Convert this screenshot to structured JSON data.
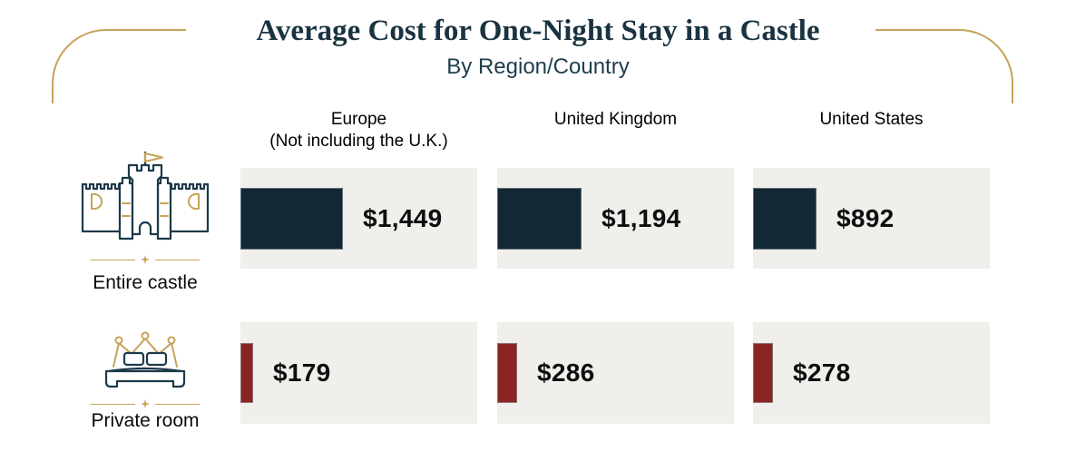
{
  "title": "Average Cost for One-Night Stay in a Castle",
  "subtitle": "By Region/Country",
  "columns": [
    {
      "label": "Europe",
      "sublabel": "(Not including the U.K.)"
    },
    {
      "label": "United Kingdom",
      "sublabel": ""
    },
    {
      "label": "United States",
      "sublabel": ""
    }
  ],
  "rows": [
    {
      "label": "Entire castle",
      "icon": "castle-icon",
      "values_display": [
        "$1,449",
        "$1,194",
        "$892"
      ]
    },
    {
      "label": "Private room",
      "icon": "bed-icon",
      "values_display": [
        "$179",
        "$286",
        "$278"
      ]
    }
  ],
  "chart_data": {
    "type": "bar",
    "orientation": "horizontal",
    "title": "Average Cost for One-Night Stay in a Castle",
    "subtitle": "By Region/Country",
    "categories": [
      "Europe (Not including the U.K.)",
      "United Kingdom",
      "United States"
    ],
    "series": [
      {
        "name": "Entire castle",
        "values": [
          1449,
          1194,
          892
        ],
        "color": "#122935"
      },
      {
        "name": "Private room",
        "values": [
          179,
          286,
          278
        ],
        "color": "#8b2522"
      }
    ],
    "value_prefix": "$",
    "grid": false,
    "legend_position": "none",
    "implied_value_axis_max": 3350
  },
  "colors": {
    "accent_gold": "#c7a258",
    "icon_navy": "#1d3a4a",
    "title_navy": "#1a3341",
    "subtitle_navy": "#1e3d4c",
    "panel_bg": "#f0efec",
    "bar_entire_castle": "#122935",
    "bar_private_room": "#8b2522",
    "value_text": "#0e0e0e",
    "background": "#ffffff"
  }
}
